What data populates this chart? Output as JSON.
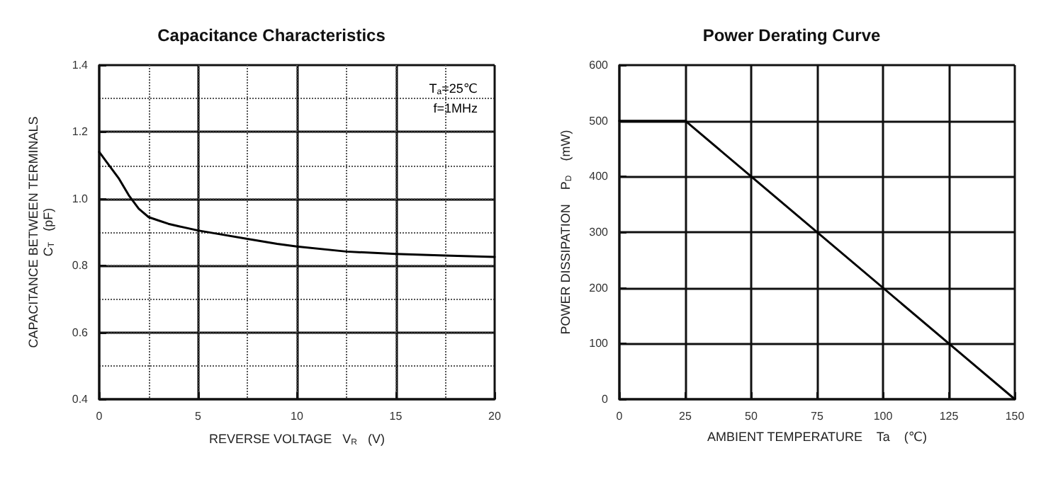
{
  "chart_data": [
    {
      "type": "line",
      "title": "Capacitance Characteristics",
      "xlabel": "REVERSE VOLTAGE   V$_{R}$   (V)",
      "ylabel": "CAPACITANCE BETWEEN TERMINALS\nC$_{T}$   (pF)",
      "annotations": [
        "T$_{a}$=25℃",
        "f=1MHz"
      ],
      "x": [
        0,
        0.5,
        1,
        1.5,
        2,
        2.5,
        3,
        3.5,
        4,
        5,
        6,
        7.5,
        9,
        10,
        12.5,
        15,
        17.5,
        20
      ],
      "series": [
        {
          "color": "#000000",
          "values": [
            1.14,
            1.1,
            1.06,
            1.01,
            0.97,
            0.945,
            0.935,
            0.925,
            0.918,
            0.905,
            0.895,
            0.88,
            0.865,
            0.857,
            0.842,
            0.835,
            0.83,
            0.826
          ]
        }
      ],
      "xlim": [
        0,
        20
      ],
      "xticks": [
        0,
        {
          "value": 2.5,
          "label": null
        },
        5,
        {
          "value": 7.5,
          "label": null
        },
        10,
        {
          "value": 12.5,
          "label": null
        },
        15,
        {
          "value": 17.5,
          "label": null
        },
        20
      ],
      "ylim": [
        0.4,
        1.4
      ],
      "yticks": [
        0.4,
        {
          "value": 0.5,
          "label": null
        },
        0.6,
        {
          "value": 0.7,
          "label": null
        },
        0.8,
        {
          "value": 0.9,
          "label": null
        },
        {
          "value": 1,
          "label": "1.0"
        },
        {
          "value": 1.1,
          "label": null
        },
        1.2,
        {
          "value": 1.3,
          "label": null
        },
        1.4
      ],
      "grid": true,
      "marker": "none",
      "line_style": "solid"
    },
    {
      "type": "line",
      "title": "Power Derating Curve",
      "xlabel": "AMBIENT TEMPERATURE    Ta    (℃)",
      "ylabel": "POWER DISSIPATION    P$_{D}$    (mW)",
      "x": [
        0,
        25,
        150
      ],
      "series": [
        {
          "color": "#000000",
          "values": [
            500,
            500,
            0
          ]
        }
      ],
      "xlim": [
        0,
        150
      ],
      "xticks": [
        0,
        25,
        50,
        75,
        100,
        125,
        150
      ],
      "ylim": [
        0,
        600
      ],
      "yticks": [
        0,
        100,
        200,
        300,
        400,
        500,
        600
      ],
      "grid": true,
      "marker": "none",
      "line_style": "solid"
    }
  ]
}
